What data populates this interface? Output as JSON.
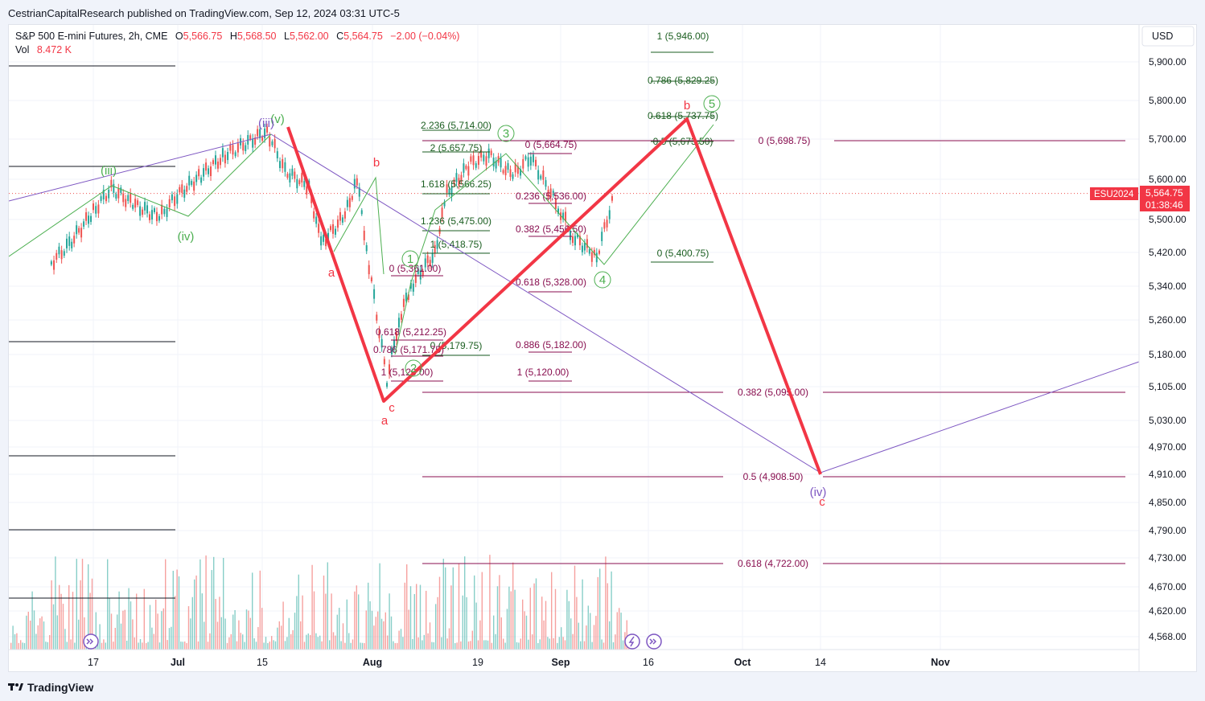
{
  "header": {
    "published_text": "CestrianCapitalResearch published on TradingView.com, Sep 12, 2024 03:31 UTC-5"
  },
  "legend": {
    "symbol": "S&P 500 E-mini Futures, 2h, CME",
    "o_label": "O",
    "o_value": "5,566.75",
    "h_label": "H",
    "h_value": "5,568.50",
    "l_label": "L",
    "l_value": "5,562.00",
    "c_label": "C",
    "c_value": "5,564.75",
    "change": "−2.00 (−0.04%)",
    "vol_label": "Vol",
    "vol_value": "8.472 K"
  },
  "currency_button": "USD",
  "price_tag": {
    "ticker": "ESU2024",
    "price": "5,564.75",
    "countdown": "01:38:46"
  },
  "footer": {
    "brand": "TradingView"
  },
  "colors": {
    "up": "#26a69a",
    "down": "#ef5350",
    "red_wave": "#f23645",
    "green_wave": "#4caf50",
    "purple": "#7e57c2",
    "fib_dark": "#880e4f",
    "fib_green": "#1b5e20",
    "black": "#131722"
  },
  "chart_data": {
    "type": "line",
    "title": "S&P 500 E-mini Futures, 2h, CME",
    "ylim": [
      4540,
      5990
    ],
    "y_ticks": [
      "5,900.00",
      "5,800.00",
      "5,700.00",
      "5,600.00",
      "5,500.00",
      "5,420.00",
      "5,340.00",
      "5,260.00",
      "5,180.00",
      "5,105.00",
      "5,030.00",
      "4,970.00",
      "4,910.00",
      "4,850.00",
      "4,790.00",
      "4,730.00",
      "4,670.00",
      "4,620.00",
      "4,568.00"
    ],
    "x_ticks": [
      "17",
      "Jul",
      "15",
      "Aug",
      "19",
      "Sep",
      "16",
      "Oct",
      "14",
      "Nov"
    ],
    "series": [
      {
        "name": "price",
        "x": [
          "Jun 10",
          "Jun 13",
          "Jun 17",
          "Jun 20",
          "Jun 24",
          "Jun 28",
          "Jul 1",
          "Jul 5",
          "Jul 9",
          "Jul 12",
          "Jul 16",
          "Jul 19",
          "Jul 23",
          "Jul 25",
          "Jul 29",
          "Jul 31",
          "Aug 2",
          "Aug 5",
          "Aug 7",
          "Aug 9",
          "Aug 13",
          "Aug 15",
          "Aug 19",
          "Aug 22",
          "Aug 26",
          "Aug 29",
          "Sep 3",
          "Sep 5",
          "Sep 9",
          "Sep 12"
        ],
        "y": [
          5395,
          5440,
          5520,
          5578,
          5535,
          5505,
          5560,
          5610,
          5660,
          5685,
          5720,
          5620,
          5580,
          5440,
          5510,
          5600,
          5390,
          5120,
          5260,
          5340,
          5420,
          5565,
          5640,
          5660,
          5610,
          5655,
          5520,
          5460,
          5410,
          5565
        ]
      }
    ],
    "wave_count": {
      "red_path": [
        [
          "Jul 16",
          5730
        ],
        [
          "Aug 5",
          5075
        ],
        [
          "Sep 23",
          5746
        ],
        [
          "Oct 14",
          4898
        ]
      ],
      "red_labels": [
        {
          "text": "b",
          "x": "Aug 1",
          "y": 5610
        },
        {
          "text": "a",
          "x": "Jul 26",
          "y": 5373
        },
        {
          "text": "c",
          "x": "Aug 6",
          "y": 5066
        },
        {
          "text": "a",
          "x": "Aug 5",
          "y": 5048
        },
        {
          "text": "b",
          "x": "Sep 23",
          "y": 5784
        },
        {
          "text": "c",
          "x": "Oct 14",
          "y": 4852
        }
      ],
      "green_labels": [
        {
          "text": "(iii)",
          "x": "Jun 19",
          "y": 5613
        },
        {
          "text": "(iv)",
          "x": "Jul 1",
          "y": 5462
        },
        {
          "text": "(v)",
          "x": "Jul 16",
          "y": 5748
        },
        {
          "text": "1",
          "x": "Aug 7",
          "y": 5402
        },
        {
          "text": "2",
          "x": "Aug 8",
          "y": 5122
        },
        {
          "text": "3",
          "x": "Aug 22",
          "y": 5687
        },
        {
          "text": "4",
          "x": "Sep 6",
          "y": 5354
        },
        {
          "text": "5",
          "x": "Sep 26",
          "y": 5768
        }
      ],
      "purple_labels": [
        {
          "text": "(iii)",
          "x": "Jul 14",
          "y": 5732
        },
        {
          "text": "(iv)",
          "x": "Oct 14",
          "y": 4880
        }
      ]
    },
    "fib_levels": [
      {
        "label": "1 (5,946.00)",
        "value": 5946,
        "color": "green"
      },
      {
        "label": "0.786 (5,829.25)",
        "value": 5829.25,
        "color": "green"
      },
      {
        "label": "0.618 (5,737.75)",
        "value": 5737.75,
        "color": "green"
      },
      {
        "label": "0.5 (5,673.50)",
        "value": 5673.5,
        "color": "green"
      },
      {
        "label": "0 (5,400.75)",
        "value": 5400.75,
        "color": "green"
      },
      {
        "label": "0 (5,698.75)",
        "value": 5698.75,
        "color": "dark"
      },
      {
        "label": "0.382 (5,095.00)",
        "value": 5095,
        "color": "dark"
      },
      {
        "label": "0.5 (4,908.50)",
        "value": 4908.5,
        "color": "dark"
      },
      {
        "label": "0.618 (4,722.00)",
        "value": 4722,
        "color": "dark"
      },
      {
        "label": "2.236 (5,714.00)",
        "value": 5714,
        "color": "green"
      },
      {
        "label": "2 (5,657.75)",
        "value": 5657.75,
        "color": "green"
      },
      {
        "label": "1.618 (5,566.25)",
        "value": 5566.25,
        "color": "green"
      },
      {
        "label": "1.236 (5,475.00)",
        "value": 5475,
        "color": "green"
      },
      {
        "label": "1 (5,418.75)",
        "value": 5418.75,
        "color": "green"
      },
      {
        "label": "0 (5,179.75)",
        "value": 5179.75,
        "color": "green"
      },
      {
        "label": "0 (5,664.75)",
        "value": 5664.75,
        "color": "dark"
      },
      {
        "label": "0.236 (5,536.00)",
        "value": 5536,
        "color": "dark"
      },
      {
        "label": "0.382 (5,456.50)",
        "value": 5456.5,
        "color": "dark"
      },
      {
        "label": "0.618 (5,328.00)",
        "value": 5328,
        "color": "dark"
      },
      {
        "label": "0.886 (5,182.00)",
        "value": 5182,
        "color": "dark"
      },
      {
        "label": "1 (5,120.00)",
        "value": 5120,
        "color": "dark"
      },
      {
        "label": "0 (5,361.00)",
        "value": 5361,
        "color": "dark"
      },
      {
        "label": "0.618 (5,212.25)",
        "value": 5212.25,
        "color": "dark"
      },
      {
        "label": "0.786 (5,171.75)",
        "value": 5171.75,
        "color": "dark"
      },
      {
        "label": "1 (5,120.00)",
        "value": 5120,
        "color": "dark"
      }
    ]
  }
}
